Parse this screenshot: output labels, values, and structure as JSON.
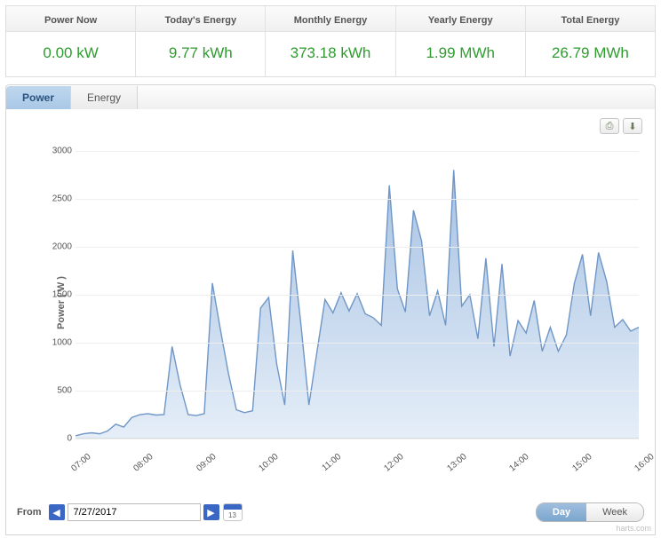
{
  "summary": [
    {
      "label": "Power Now",
      "value": "0.00 kW"
    },
    {
      "label": "Today's Energy",
      "value": "9.77 kWh"
    },
    {
      "label": "Monthly Energy",
      "value": "373.18 kWh"
    },
    {
      "label": "Yearly Energy",
      "value": "1.99 MWh"
    },
    {
      "label": "Total Energy",
      "value": "26.79 MWh"
    }
  ],
  "tabs": {
    "power": "Power",
    "energy": "Energy"
  },
  "chart": {
    "type": "area",
    "ylabel": "Power ( W )",
    "ylim": [
      0,
      3100
    ],
    "yticks": [
      0,
      500,
      1000,
      1500,
      2000,
      2500,
      3000
    ],
    "xticks": [
      "07:00",
      "08:00",
      "09:00",
      "10:00",
      "11:00",
      "12:00",
      "13:00",
      "14:00",
      "15:00",
      "16:00"
    ],
    "line_color": "#6f96c6",
    "fill_top": "#a7c2e3",
    "fill_bottom": "#e5eef8",
    "grid_color": "#eeeeee",
    "background_color": "#ffffff",
    "series": [
      30,
      50,
      60,
      50,
      80,
      150,
      120,
      220,
      250,
      260,
      245,
      250,
      960,
      560,
      250,
      240,
      260,
      1620,
      1140,
      680,
      300,
      270,
      290,
      1360,
      1470,
      780,
      350,
      1960,
      1200,
      350,
      900,
      1450,
      1310,
      1520,
      1330,
      1510,
      1300,
      1260,
      1180,
      2640,
      1560,
      1320,
      2380,
      2060,
      1280,
      1540,
      1180,
      2800,
      1380,
      1500,
      1040,
      1880,
      960,
      1820,
      860,
      1230,
      1100,
      1440,
      910,
      1160,
      910,
      1080,
      1620,
      1920,
      1280,
      1940,
      1640,
      1160,
      1240,
      1120,
      1160
    ]
  },
  "controls": {
    "from_label": "From",
    "date": "7/27/2017",
    "cal_day": "13",
    "day": "Day",
    "week": "Week"
  },
  "tools": {
    "print": "⎙",
    "download": "⬇"
  },
  "credits": "harts.com"
}
